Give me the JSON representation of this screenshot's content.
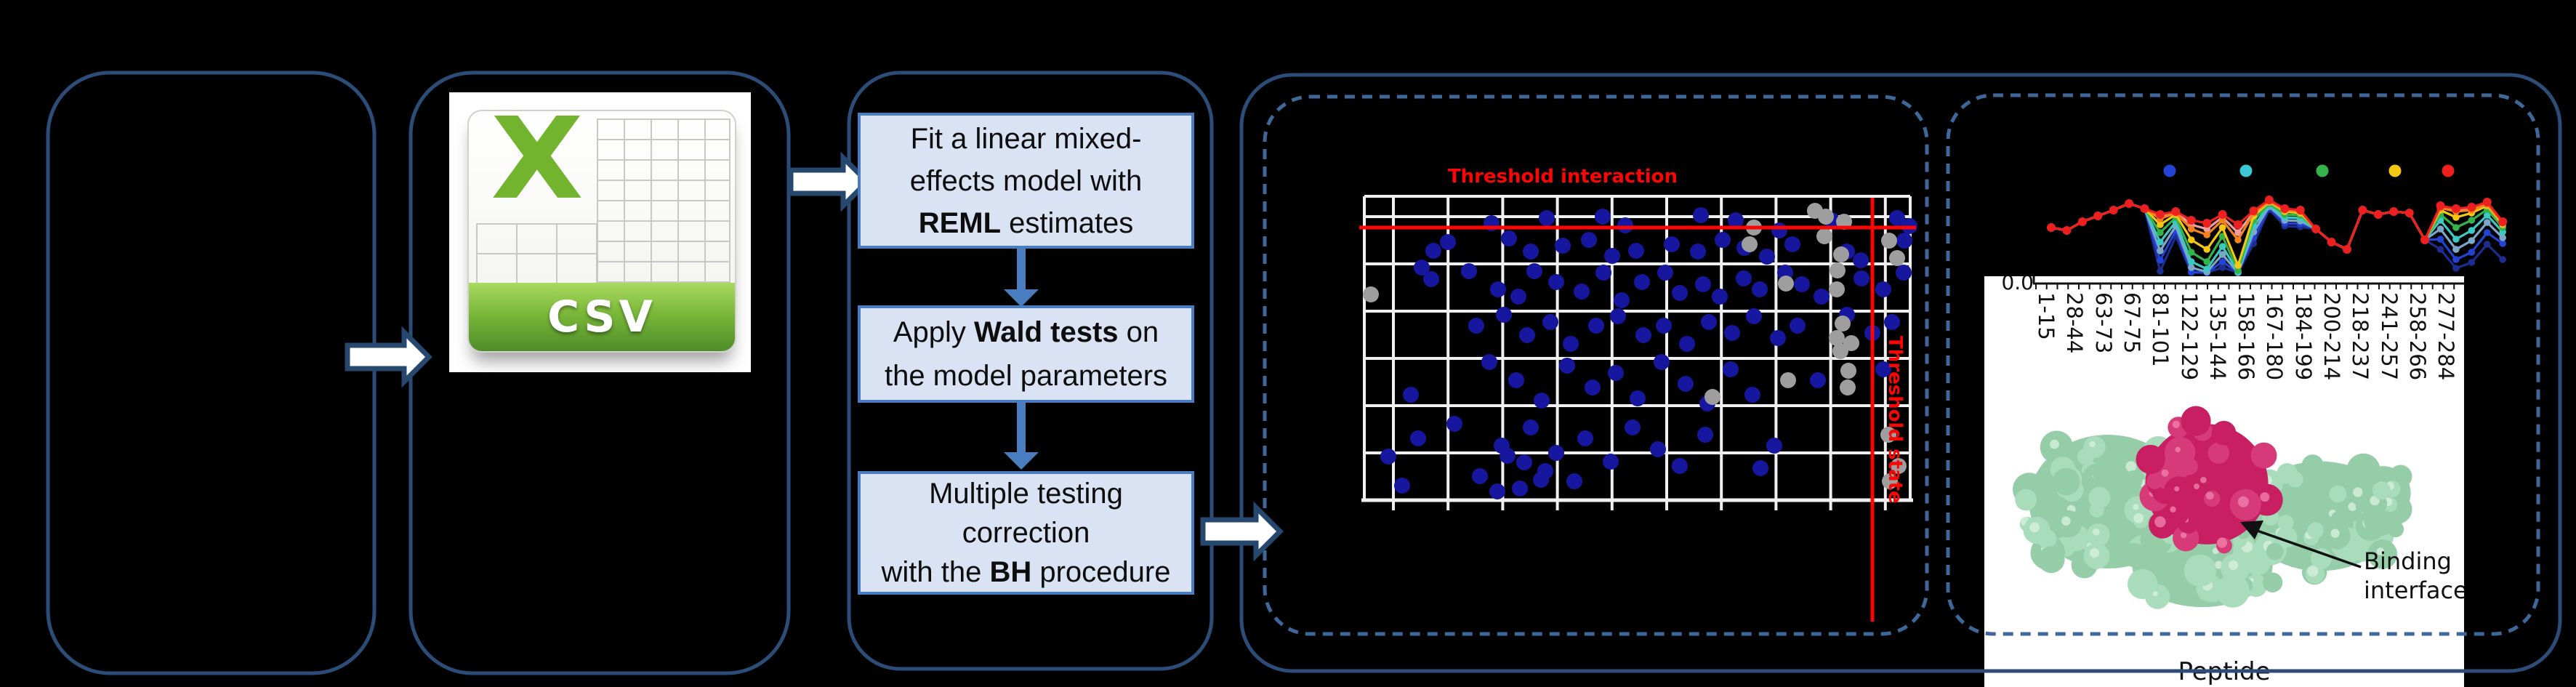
{
  "csv_icon": {
    "label": "CSV"
  },
  "flowchart": {
    "steps": [
      {
        "lines": [
          [
            {
              "t": "Fit a linear mixed-"
            }
          ],
          [
            {
              "t": "effects model with"
            }
          ],
          [
            {
              "t": "REML",
              "b": true
            },
            {
              "t": " estimates"
            }
          ]
        ]
      },
      {
        "lines": [
          [
            {
              "t": "Apply "
            },
            {
              "t": "Wald tests",
              "b": true
            },
            {
              "t": " on"
            }
          ],
          [
            {
              "t": "the model parameters"
            }
          ]
        ]
      },
      {
        "lines": [
          [
            {
              "t": "Multiple testing"
            }
          ],
          [
            {
              "t": "correction"
            }
          ],
          [
            {
              "t": "with the "
            },
            {
              "t": "BH",
              "b": true
            },
            {
              "t": " procedure"
            }
          ]
        ]
      }
    ]
  },
  "scatter_panel": {
    "title": "Threshold interaction",
    "vline_label": "Threshold state",
    "threshold_color": "#fe0505",
    "point_color": "#16169e",
    "excluded_point_color": "#9e9e9e",
    "blue_points": [
      [
        2052,
        307
      ],
      [
        2128,
        300
      ],
      [
        2205,
        298
      ],
      [
        2236,
        310
      ],
      [
        2340,
        296
      ],
      [
        2388,
        303
      ],
      [
        2448,
        317
      ],
      [
        2520,
        303
      ],
      [
        2610,
        300
      ],
      [
        2627,
        311
      ],
      [
        1972,
        345
      ],
      [
        1992,
        333
      ],
      [
        2076,
        328
      ],
      [
        2106,
        346
      ],
      [
        2150,
        338
      ],
      [
        2186,
        330
      ],
      [
        2218,
        352
      ],
      [
        2251,
        345
      ],
      [
        2300,
        336
      ],
      [
        2336,
        346
      ],
      [
        2370,
        330
      ],
      [
        2400,
        341
      ],
      [
        2431,
        353
      ],
      [
        2466,
        336
      ],
      [
        2541,
        346
      ],
      [
        2620,
        331
      ],
      [
        2560,
        358
      ],
      [
        1956,
        368
      ],
      [
        1969,
        384
      ],
      [
        2021,
        373
      ],
      [
        2061,
        398
      ],
      [
        2089,
        408
      ],
      [
        2111,
        373
      ],
      [
        2141,
        388
      ],
      [
        2176,
        401
      ],
      [
        2206,
        375
      ],
      [
        2231,
        413
      ],
      [
        2259,
        388
      ],
      [
        2291,
        375
      ],
      [
        2311,
        403
      ],
      [
        2343,
        391
      ],
      [
        2366,
        408
      ],
      [
        2399,
        383
      ],
      [
        2421,
        398
      ],
      [
        2456,
        375
      ],
      [
        2479,
        391
      ],
      [
        2506,
        408
      ],
      [
        2561,
        383
      ],
      [
        2591,
        398
      ],
      [
        2619,
        375
      ],
      [
        2031,
        448
      ],
      [
        2069,
        433
      ],
      [
        2101,
        461
      ],
      [
        2133,
        443
      ],
      [
        2161,
        473
      ],
      [
        2196,
        448
      ],
      [
        2226,
        435
      ],
      [
        2261,
        461
      ],
      [
        2289,
        448
      ],
      [
        2321,
        473
      ],
      [
        2351,
        443
      ],
      [
        2383,
        458
      ],
      [
        2413,
        435
      ],
      [
        2446,
        465
      ],
      [
        2473,
        448
      ],
      [
        2541,
        433
      ],
      [
        2576,
        458
      ],
      [
        2603,
        443
      ],
      [
        1941,
        543
      ],
      [
        2049,
        498
      ],
      [
        2086,
        523
      ],
      [
        2121,
        551
      ],
      [
        2156,
        503
      ],
      [
        2191,
        533
      ],
      [
        2223,
        513
      ],
      [
        2253,
        548
      ],
      [
        2286,
        498
      ],
      [
        2319,
        528
      ],
      [
        2349,
        555
      ],
      [
        2381,
        508
      ],
      [
        2411,
        543
      ],
      [
        2501,
        523
      ],
      [
        2591,
        508
      ],
      [
        1910,
        628
      ],
      [
        1951,
        603
      ],
      [
        2001,
        583
      ],
      [
        2066,
        613
      ],
      [
        2106,
        588
      ],
      [
        2141,
        623
      ],
      [
        2181,
        603
      ],
      [
        2216,
        635
      ],
      [
        2246,
        588
      ],
      [
        2281,
        618
      ],
      [
        2311,
        641
      ],
      [
        2346,
        598
      ],
      [
        2441,
        613
      ],
      [
        2422,
        644
      ],
      [
        1929,
        668
      ],
      [
        2036,
        655
      ],
      [
        2091,
        672
      ],
      [
        2126,
        648
      ],
      [
        2166,
        662
      ],
      [
        2074,
        627
      ],
      [
        2097,
        636
      ],
      [
        2120,
        660
      ],
      [
        2060,
        676
      ]
    ],
    "gray_points": [
      [
        2497,
        290
      ],
      [
        2512,
        298
      ],
      [
        2537,
        305
      ],
      [
        2510,
        325
      ],
      [
        2413,
        313
      ],
      [
        2407,
        336
      ],
      [
        2533,
        350
      ],
      [
        2528,
        372
      ],
      [
        2457,
        390
      ],
      [
        2527,
        398
      ],
      [
        2535,
        445
      ],
      [
        2527,
        465
      ],
      [
        2547,
        472
      ],
      [
        2532,
        483
      ],
      [
        2543,
        510
      ],
      [
        2460,
        523
      ],
      [
        2542,
        533
      ],
      [
        2599,
        331
      ],
      [
        2610,
        355
      ],
      [
        1886,
        405
      ],
      [
        2356,
        546
      ],
      [
        2598,
        598
      ],
      [
        2612,
        641
      ],
      [
        2600,
        662
      ]
    ]
  },
  "peptide_panel": {
    "xlabel": "Peptide",
    "y_tick_label": "0.0",
    "x_tick_labels": [
      "1-15",
      "28-44",
      "63-73",
      "67-75",
      "81-101",
      "122-129",
      "135-144",
      "158-166",
      "167-180",
      "184-199",
      "200-214",
      "218-237",
      "241-257",
      "258-266",
      "277-284"
    ],
    "legend_dot_colors": [
      "#2243d4",
      "#3cc8d4",
      "#33b44a",
      "#f4c812",
      "#ee1f1f"
    ],
    "annotation": {
      "line1": "Binding",
      "line2": "interface"
    },
    "protein_colors": {
      "surface": "#96cda9",
      "peptide": "#c81e62"
    },
    "series": [
      {
        "name": "navy",
        "color": "#1c2d8f",
        "values": [
          0.62,
          0.58,
          0.7,
          0.78,
          0.86,
          0.95,
          0.88,
          0.02,
          0.5,
          0.0,
          0.0,
          0.07,
          0.0,
          0.4,
          0.87,
          0.64,
          0.63,
          0.6,
          0.42,
          0.32,
          0.86,
          0.8,
          0.84,
          0.82,
          0.45,
          0.32,
          0.06,
          0.14,
          0.39,
          0.18
        ]
      },
      {
        "name": "blue",
        "color": "#2243d4",
        "values": [
          0.62,
          0.58,
          0.7,
          0.78,
          0.86,
          0.95,
          0.88,
          0.17,
          0.58,
          0.01,
          0.0,
          0.15,
          0.0,
          0.48,
          0.89,
          0.68,
          0.67,
          0.6,
          0.42,
          0.32,
          0.86,
          0.8,
          0.84,
          0.82,
          0.45,
          0.46,
          0.18,
          0.28,
          0.55,
          0.4
        ]
      },
      {
        "name": "steel",
        "color": "#7ea6c8",
        "values": [
          0.62,
          0.58,
          0.7,
          0.78,
          0.86,
          0.95,
          0.88,
          0.3,
          0.64,
          0.07,
          0.01,
          0.25,
          0.0,
          0.56,
          0.91,
          0.72,
          0.71,
          0.6,
          0.42,
          0.32,
          0.86,
          0.8,
          0.84,
          0.82,
          0.45,
          0.6,
          0.32,
          0.44,
          0.69,
          0.48
        ]
      },
      {
        "name": "teal",
        "color": "#3cc8c3",
        "values": [
          0.62,
          0.58,
          0.7,
          0.78,
          0.86,
          0.95,
          0.88,
          0.42,
          0.7,
          0.15,
          0.05,
          0.36,
          0.01,
          0.64,
          0.93,
          0.76,
          0.75,
          0.6,
          0.42,
          0.32,
          0.86,
          0.8,
          0.84,
          0.82,
          0.45,
          0.72,
          0.46,
          0.58,
          0.79,
          0.56
        ]
      },
      {
        "name": "green",
        "color": "#33b44a",
        "values": [
          0.62,
          0.58,
          0.7,
          0.78,
          0.86,
          0.95,
          0.88,
          0.55,
          0.76,
          0.28,
          0.15,
          0.5,
          0.03,
          0.72,
          0.95,
          0.8,
          0.79,
          0.6,
          0.42,
          0.32,
          0.86,
          0.8,
          0.84,
          0.82,
          0.45,
          0.8,
          0.62,
          0.72,
          0.87,
          0.62
        ]
      },
      {
        "name": "yellow",
        "color": "#f4c812",
        "values": [
          0.62,
          0.58,
          0.7,
          0.78,
          0.86,
          0.95,
          0.88,
          0.66,
          0.8,
          0.45,
          0.32,
          0.62,
          0.1,
          0.78,
          0.97,
          0.84,
          0.82,
          0.6,
          0.42,
          0.32,
          0.86,
          0.8,
          0.84,
          0.82,
          0.45,
          0.86,
          0.76,
          0.82,
          0.92,
          0.66
        ]
      },
      {
        "name": "pink",
        "color": "#f49c9c",
        "values": [
          0.62,
          0.58,
          0.7,
          0.78,
          0.86,
          0.95,
          0.88,
          0.77,
          0.83,
          0.66,
          0.6,
          0.76,
          0.55,
          0.83,
          0.99,
          0.87,
          0.85,
          0.6,
          0.42,
          0.32,
          0.86,
          0.8,
          0.84,
          0.82,
          0.45,
          0.9,
          0.86,
          0.88,
          0.95,
          0.69
        ]
      },
      {
        "name": "orange",
        "color": "#f58220",
        "values": [
          0.62,
          0.58,
          0.7,
          0.78,
          0.86,
          0.95,
          0.88,
          0.74,
          0.82,
          0.6,
          0.52,
          0.72,
          0.45,
          0.82,
          0.98,
          0.86,
          0.84,
          0.6,
          0.42,
          0.32,
          0.86,
          0.8,
          0.84,
          0.82,
          0.45,
          0.89,
          0.84,
          0.86,
          0.94,
          0.68
        ]
      },
      {
        "name": "red",
        "color": "#ee1f1f",
        "values": [
          0.62,
          0.58,
          0.7,
          0.78,
          0.86,
          0.95,
          0.88,
          0.8,
          0.84,
          0.72,
          0.68,
          0.8,
          0.66,
          0.85,
          1.0,
          0.88,
          0.86,
          0.6,
          0.42,
          0.32,
          0.86,
          0.8,
          0.84,
          0.82,
          0.45,
          0.92,
          0.88,
          0.9,
          0.97,
          0.7
        ]
      }
    ]
  }
}
